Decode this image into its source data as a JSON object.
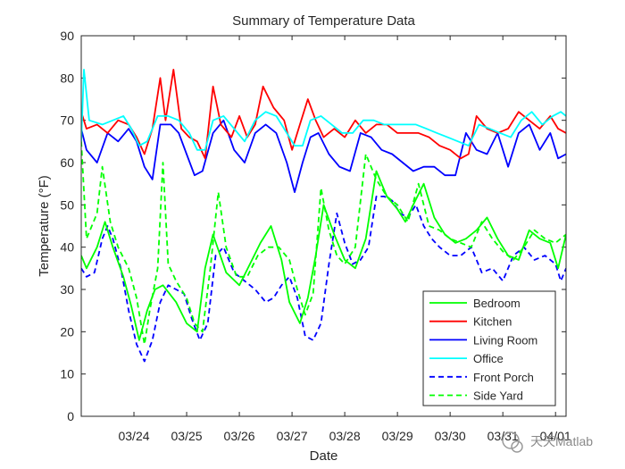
{
  "chart_data": {
    "type": "line",
    "title": "Summary of Temperature Data",
    "xlabel": "Date",
    "ylabel": "Temperature (°F)",
    "ylim": [
      0,
      90
    ],
    "xlim": [
      0,
      9.2
    ],
    "yticks": [
      "0",
      "10",
      "20",
      "30",
      "40",
      "50",
      "60",
      "70",
      "80",
      "90"
    ],
    "xticks": [
      {
        "label": "03/24",
        "x": 1
      },
      {
        "label": "03/25",
        "x": 2
      },
      {
        "label": "03/26",
        "x": 3
      },
      {
        "label": "03/27",
        "x": 4
      },
      {
        "label": "03/28",
        "x": 5
      },
      {
        "label": "03/29",
        "x": 6
      },
      {
        "label": "03/30",
        "x": 7
      },
      {
        "label": "03/31",
        "x": 8
      },
      {
        "label": "04/01",
        "x": 9
      }
    ],
    "legend_position": "bottom-right",
    "series": [
      {
        "name": "Bedroom",
        "color": "#00ff00",
        "style": "solid",
        "x": [
          0,
          0.1,
          0.3,
          0.45,
          0.6,
          0.8,
          0.95,
          1.1,
          1.25,
          1.4,
          1.55,
          1.8,
          2.0,
          2.2,
          2.35,
          2.5,
          2.75,
          3.0,
          3.2,
          3.4,
          3.6,
          3.8,
          3.95,
          4.15,
          4.3,
          4.45,
          4.6,
          4.8,
          5.0,
          5.2,
          5.4,
          5.6,
          5.8,
          6.0,
          6.15,
          6.3,
          6.5,
          6.7,
          6.9,
          7.1,
          7.3,
          7.5,
          7.7,
          7.9,
          8.1,
          8.3,
          8.5,
          8.7,
          8.9,
          9.05,
          9.2
        ],
        "y": [
          38,
          35,
          40,
          46,
          40,
          33,
          26,
          18,
          25,
          30,
          31,
          27,
          22,
          20,
          35,
          43,
          34,
          31,
          36,
          41,
          45,
          37,
          27,
          22,
          28,
          38,
          50,
          43,
          37,
          35,
          42,
          58,
          52,
          49,
          46,
          50,
          55,
          47,
          43,
          41,
          42,
          44,
          47,
          42,
          38,
          37,
          44,
          42,
          41,
          35,
          43
        ]
      },
      {
        "name": "Kitchen",
        "color": "#ff0000",
        "style": "solid",
        "x": [
          0,
          0.1,
          0.3,
          0.5,
          0.7,
          0.9,
          1.05,
          1.2,
          1.35,
          1.5,
          1.6,
          1.75,
          1.9,
          2.05,
          2.2,
          2.35,
          2.5,
          2.65,
          2.85,
          3.0,
          3.15,
          3.3,
          3.45,
          3.65,
          3.85,
          4.0,
          4.15,
          4.3,
          4.45,
          4.6,
          4.8,
          5.0,
          5.2,
          5.4,
          5.6,
          5.8,
          6.0,
          6.2,
          6.4,
          6.6,
          6.8,
          7.0,
          7.2,
          7.35,
          7.5,
          7.7,
          7.9,
          8.1,
          8.3,
          8.5,
          8.7,
          8.9,
          9.05,
          9.2
        ],
        "y": [
          72,
          68,
          69,
          67,
          70,
          69,
          66,
          62,
          68,
          80,
          70,
          82,
          68,
          66,
          65,
          61,
          78,
          69,
          66,
          71,
          66,
          69,
          78,
          73,
          70,
          63,
          69,
          75,
          70,
          66,
          68,
          66,
          70,
          67,
          69,
          69,
          67,
          67,
          67,
          66,
          64,
          63,
          61,
          62,
          71,
          68,
          67,
          68,
          72,
          70,
          68,
          71,
          68,
          67
        ]
      },
      {
        "name": "Living Room",
        "color": "#0000ff",
        "style": "solid",
        "x": [
          0,
          0.1,
          0.3,
          0.5,
          0.7,
          0.9,
          1.05,
          1.2,
          1.35,
          1.5,
          1.7,
          1.85,
          2.0,
          2.15,
          2.3,
          2.5,
          2.7,
          2.9,
          3.1,
          3.3,
          3.5,
          3.7,
          3.9,
          4.05,
          4.2,
          4.35,
          4.5,
          4.7,
          4.9,
          5.1,
          5.3,
          5.5,
          5.7,
          5.9,
          6.1,
          6.3,
          6.5,
          6.7,
          6.9,
          7.1,
          7.3,
          7.5,
          7.7,
          7.9,
          8.1,
          8.3,
          8.5,
          8.7,
          8.9,
          9.05,
          9.2
        ],
        "y": [
          68,
          63,
          60,
          67,
          65,
          68,
          65,
          59,
          56,
          69,
          69,
          67,
          62,
          57,
          58,
          67,
          70,
          63,
          60,
          67,
          69,
          67,
          60,
          53,
          60,
          66,
          67,
          62,
          59,
          58,
          67,
          66,
          63,
          62,
          60,
          58,
          59,
          59,
          57,
          57,
          67,
          63,
          62,
          67,
          59,
          67,
          69,
          63,
          67,
          61,
          62
        ]
      },
      {
        "name": "Office",
        "color": "#00ffff",
        "style": "solid",
        "x": [
          0,
          0.05,
          0.15,
          0.4,
          0.6,
          0.8,
          0.95,
          1.1,
          1.25,
          1.45,
          1.65,
          1.85,
          2.05,
          2.2,
          2.35,
          2.5,
          2.7,
          2.9,
          3.1,
          3.3,
          3.5,
          3.7,
          3.9,
          4.05,
          4.2,
          4.35,
          4.55,
          4.75,
          4.95,
          5.15,
          5.35,
          5.55,
          5.75,
          5.95,
          6.15,
          6.35,
          6.55,
          6.75,
          6.95,
          7.15,
          7.35,
          7.55,
          7.75,
          7.95,
          8.15,
          8.35,
          8.55,
          8.75,
          8.95,
          9.1,
          9.2
        ],
        "y": [
          65,
          82,
          70,
          69,
          70,
          71,
          68,
          64,
          65,
          71,
          71,
          70,
          67,
          63,
          63,
          70,
          71,
          68,
          65,
          70,
          72,
          71,
          67,
          64,
          64,
          70,
          71,
          69,
          67,
          67,
          70,
          70,
          69,
          69,
          69,
          69,
          68,
          67,
          66,
          65,
          64,
          69,
          68,
          67,
          66,
          70,
          72,
          69,
          71,
          72,
          71
        ]
      },
      {
        "name": "Front Porch",
        "color": "#0000ff",
        "style": "dashed",
        "x": [
          0,
          0.1,
          0.25,
          0.4,
          0.5,
          0.6,
          0.75,
          0.9,
          1.05,
          1.2,
          1.35,
          1.5,
          1.65,
          1.8,
          1.95,
          2.1,
          2.25,
          2.4,
          2.55,
          2.7,
          2.9,
          3.1,
          3.3,
          3.5,
          3.65,
          3.8,
          3.95,
          4.1,
          4.25,
          4.4,
          4.55,
          4.7,
          4.85,
          5.0,
          5.15,
          5.3,
          5.45,
          5.6,
          5.75,
          5.9,
          6.05,
          6.2,
          6.35,
          6.5,
          6.65,
          6.8,
          7.0,
          7.2,
          7.4,
          7.6,
          7.8,
          8.0,
          8.2,
          8.4,
          8.6,
          8.8,
          9.0,
          9.1,
          9.2
        ],
        "y": [
          35,
          33,
          34,
          42,
          45,
          42,
          35,
          25,
          17,
          13,
          18,
          27,
          31,
          30,
          29,
          23,
          18,
          22,
          38,
          40,
          34,
          32,
          30,
          27,
          28,
          31,
          33,
          28,
          19,
          18,
          22,
          36,
          48,
          41,
          36,
          37,
          40,
          52,
          52,
          51,
          48,
          47,
          50,
          45,
          42,
          40,
          38,
          38,
          40,
          34,
          35,
          32,
          38,
          40,
          37,
          38,
          36,
          32,
          35
        ]
      },
      {
        "name": "Side Yard",
        "color": "#00ff00",
        "style": "dashed",
        "x": [
          0,
          0.1,
          0.3,
          0.4,
          0.55,
          0.7,
          0.9,
          1.05,
          1.2,
          1.3,
          1.45,
          1.55,
          1.65,
          1.8,
          2.0,
          2.15,
          2.3,
          2.45,
          2.6,
          2.75,
          2.95,
          3.15,
          3.35,
          3.55,
          3.75,
          3.95,
          4.1,
          4.25,
          4.4,
          4.55,
          4.7,
          4.85,
          5.0,
          5.2,
          5.4,
          5.6,
          5.8,
          6.0,
          6.2,
          6.4,
          6.6,
          6.8,
          7.0,
          7.2,
          7.4,
          7.6,
          7.8,
          8.0,
          8.2,
          8.4,
          8.6,
          8.8,
          9.0,
          9.2
        ],
        "y": [
          65,
          42,
          48,
          59,
          46,
          40,
          35,
          28,
          17,
          25,
          35,
          60,
          36,
          32,
          28,
          22,
          20,
          35,
          53,
          40,
          33,
          33,
          38,
          40,
          40,
          37,
          30,
          24,
          29,
          54,
          44,
          38,
          36,
          40,
          62,
          56,
          52,
          50,
          46,
          55,
          45,
          44,
          42,
          41,
          40,
          46,
          42,
          39,
          37,
          40,
          44,
          42,
          41,
          43
        ]
      }
    ],
    "watermark": "天天Matlab"
  }
}
